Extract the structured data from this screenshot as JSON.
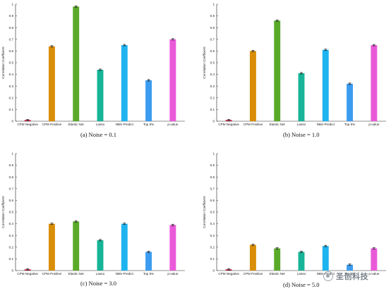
{
  "chart_data": [
    {
      "type": "bar",
      "caption": "(a) Noise = 0.1",
      "ylabel": "Correlation Coefficient",
      "ylim": [
        0,
        1
      ],
      "yticks": [
        "0",
        "0.1",
        "0.2",
        "0.3",
        "0.4",
        "0.5",
        "0.6",
        "0.7",
        "0.8",
        "0.9",
        "1"
      ],
      "categories": [
        "CPM Negative",
        "CPM Positive",
        "Elastic Net",
        "Lasso",
        "NBS-Predict",
        "Top 5%",
        "p-value"
      ],
      "values": [
        0.01,
        0.64,
        0.98,
        0.44,
        0.65,
        0.35,
        0.7
      ],
      "colors": [
        "#c0143c",
        "#d98e08",
        "#5aaa2a",
        "#18b498",
        "#1eb4f0",
        "#3c9cf0",
        "#ea5ad8"
      ]
    },
    {
      "type": "bar",
      "caption": "(b) Noise = 1.0",
      "ylabel": "Correlation Coefficient",
      "ylim": [
        0,
        1
      ],
      "yticks": [
        "0",
        "0.1",
        "0.2",
        "0.3",
        "0.4",
        "0.5",
        "0.6",
        "0.7",
        "0.8",
        "0.9",
        "1"
      ],
      "categories": [
        "CPM Negative",
        "CPM Positive",
        "Elastic Net",
        "Lasso",
        "NBS-Predict",
        "Top 5%",
        "p-value"
      ],
      "values": [
        0.01,
        0.6,
        0.86,
        0.41,
        0.61,
        0.32,
        0.65
      ],
      "colors": [
        "#c0143c",
        "#d98e08",
        "#5aaa2a",
        "#18b498",
        "#1eb4f0",
        "#3c9cf0",
        "#ea5ad8"
      ]
    },
    {
      "type": "bar",
      "caption": "(c) Noise = 3.0",
      "ylabel": "Correlation Coefficient",
      "ylim": [
        0,
        1
      ],
      "yticks": [
        "0",
        "0.1",
        "0.2",
        "0.3",
        "0.4",
        "0.5",
        "0.6",
        "0.7",
        "0.8",
        "0.9",
        "1"
      ],
      "categories": [
        "CPM Negative",
        "CPM Positive",
        "Elastic Net",
        "Lasso",
        "NBS-Predict",
        "Top 5%",
        "p-value"
      ],
      "values": [
        0.01,
        0.4,
        0.42,
        0.26,
        0.4,
        0.16,
        0.39
      ],
      "colors": [
        "#c0143c",
        "#d98e08",
        "#5aaa2a",
        "#18b498",
        "#1eb4f0",
        "#3c9cf0",
        "#ea5ad8"
      ]
    },
    {
      "type": "bar",
      "caption": "(d) Noise = 5.0",
      "ylabel": "Correlation Coefficient",
      "ylim": [
        0,
        1
      ],
      "yticks": [
        "0",
        "0.1",
        "0.2",
        "0.3",
        "0.4",
        "0.5",
        "0.6",
        "0.7",
        "0.8",
        "0.9",
        "1"
      ],
      "categories": [
        "CPM Negative",
        "CPM Positive",
        "Elastic Net",
        "Lasso",
        "NBS-Predict",
        "Top 5%",
        "p-value"
      ],
      "values": [
        0.01,
        0.22,
        0.19,
        0.16,
        0.21,
        0.05,
        0.19
      ],
      "colors": [
        "#c0143c",
        "#d98e08",
        "#5aaa2a",
        "#18b498",
        "#1eb4f0",
        "#3c9cf0",
        "#ea5ad8"
      ]
    }
  ],
  "watermark": {
    "text": "圣创科技",
    "icon": "wechat-icon"
  }
}
